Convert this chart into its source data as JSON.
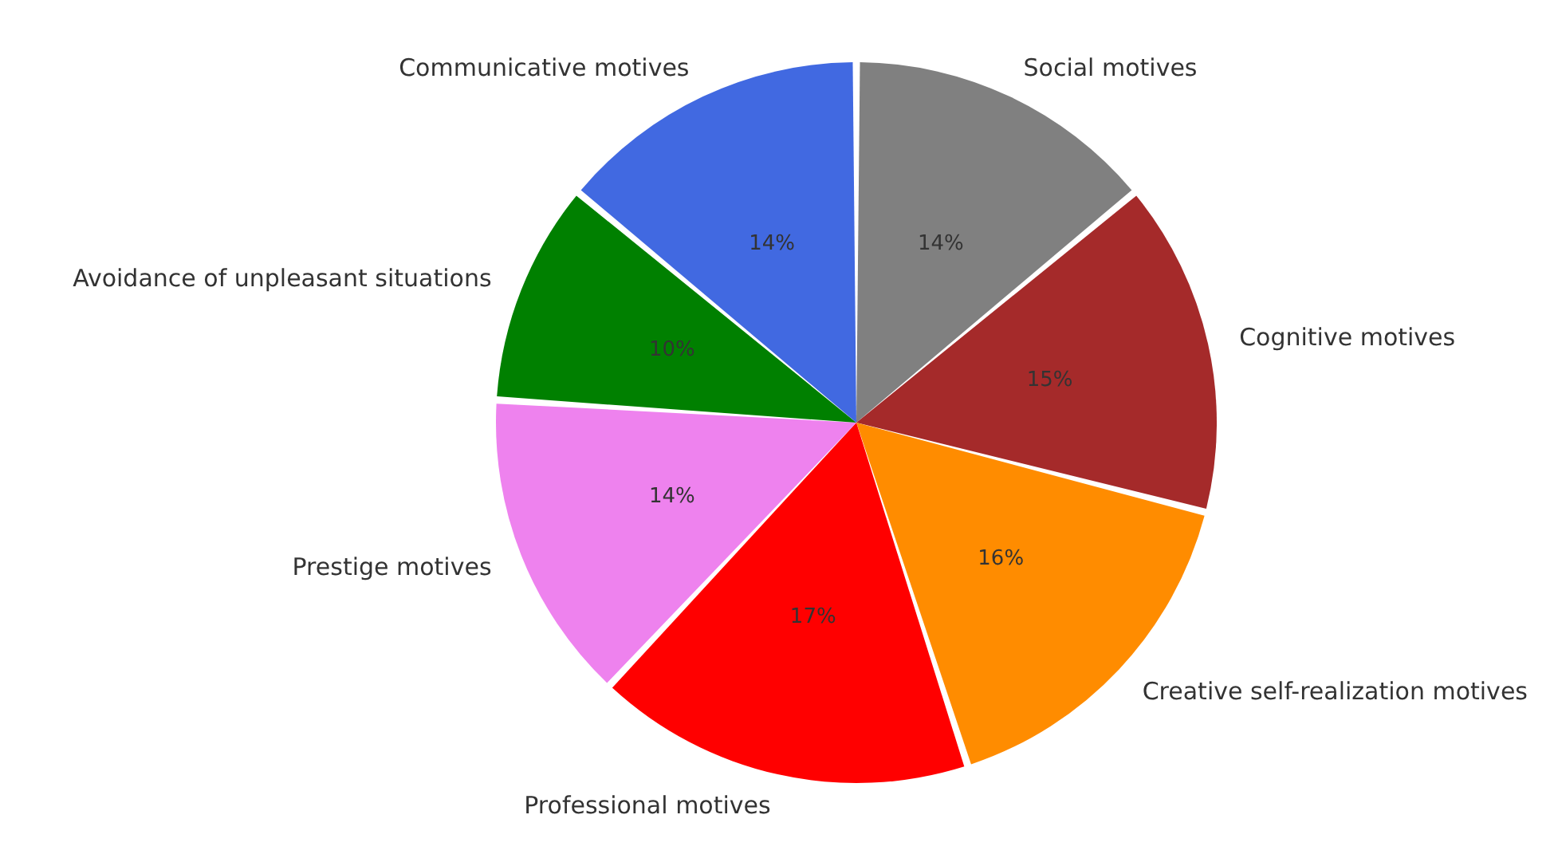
{
  "chart_data": {
    "type": "pie",
    "categories": [
      "Social motives",
      "Cognitive motives",
      "Creative self-realization motives",
      "Professional motives",
      "Prestige motives",
      "Avoidance of unpleasant situations",
      "Communicative motives"
    ],
    "values": [
      14,
      15,
      16,
      17,
      14,
      10,
      14
    ],
    "value_labels": [
      "14%",
      "15%",
      "16%",
      "17%",
      "14%",
      "10%",
      "14%"
    ],
    "colors": [
      "#808080",
      "#a52a2a",
      "#ff8c00",
      "#ff0000",
      "#ee82ee",
      "#008000",
      "#4169e1"
    ]
  }
}
